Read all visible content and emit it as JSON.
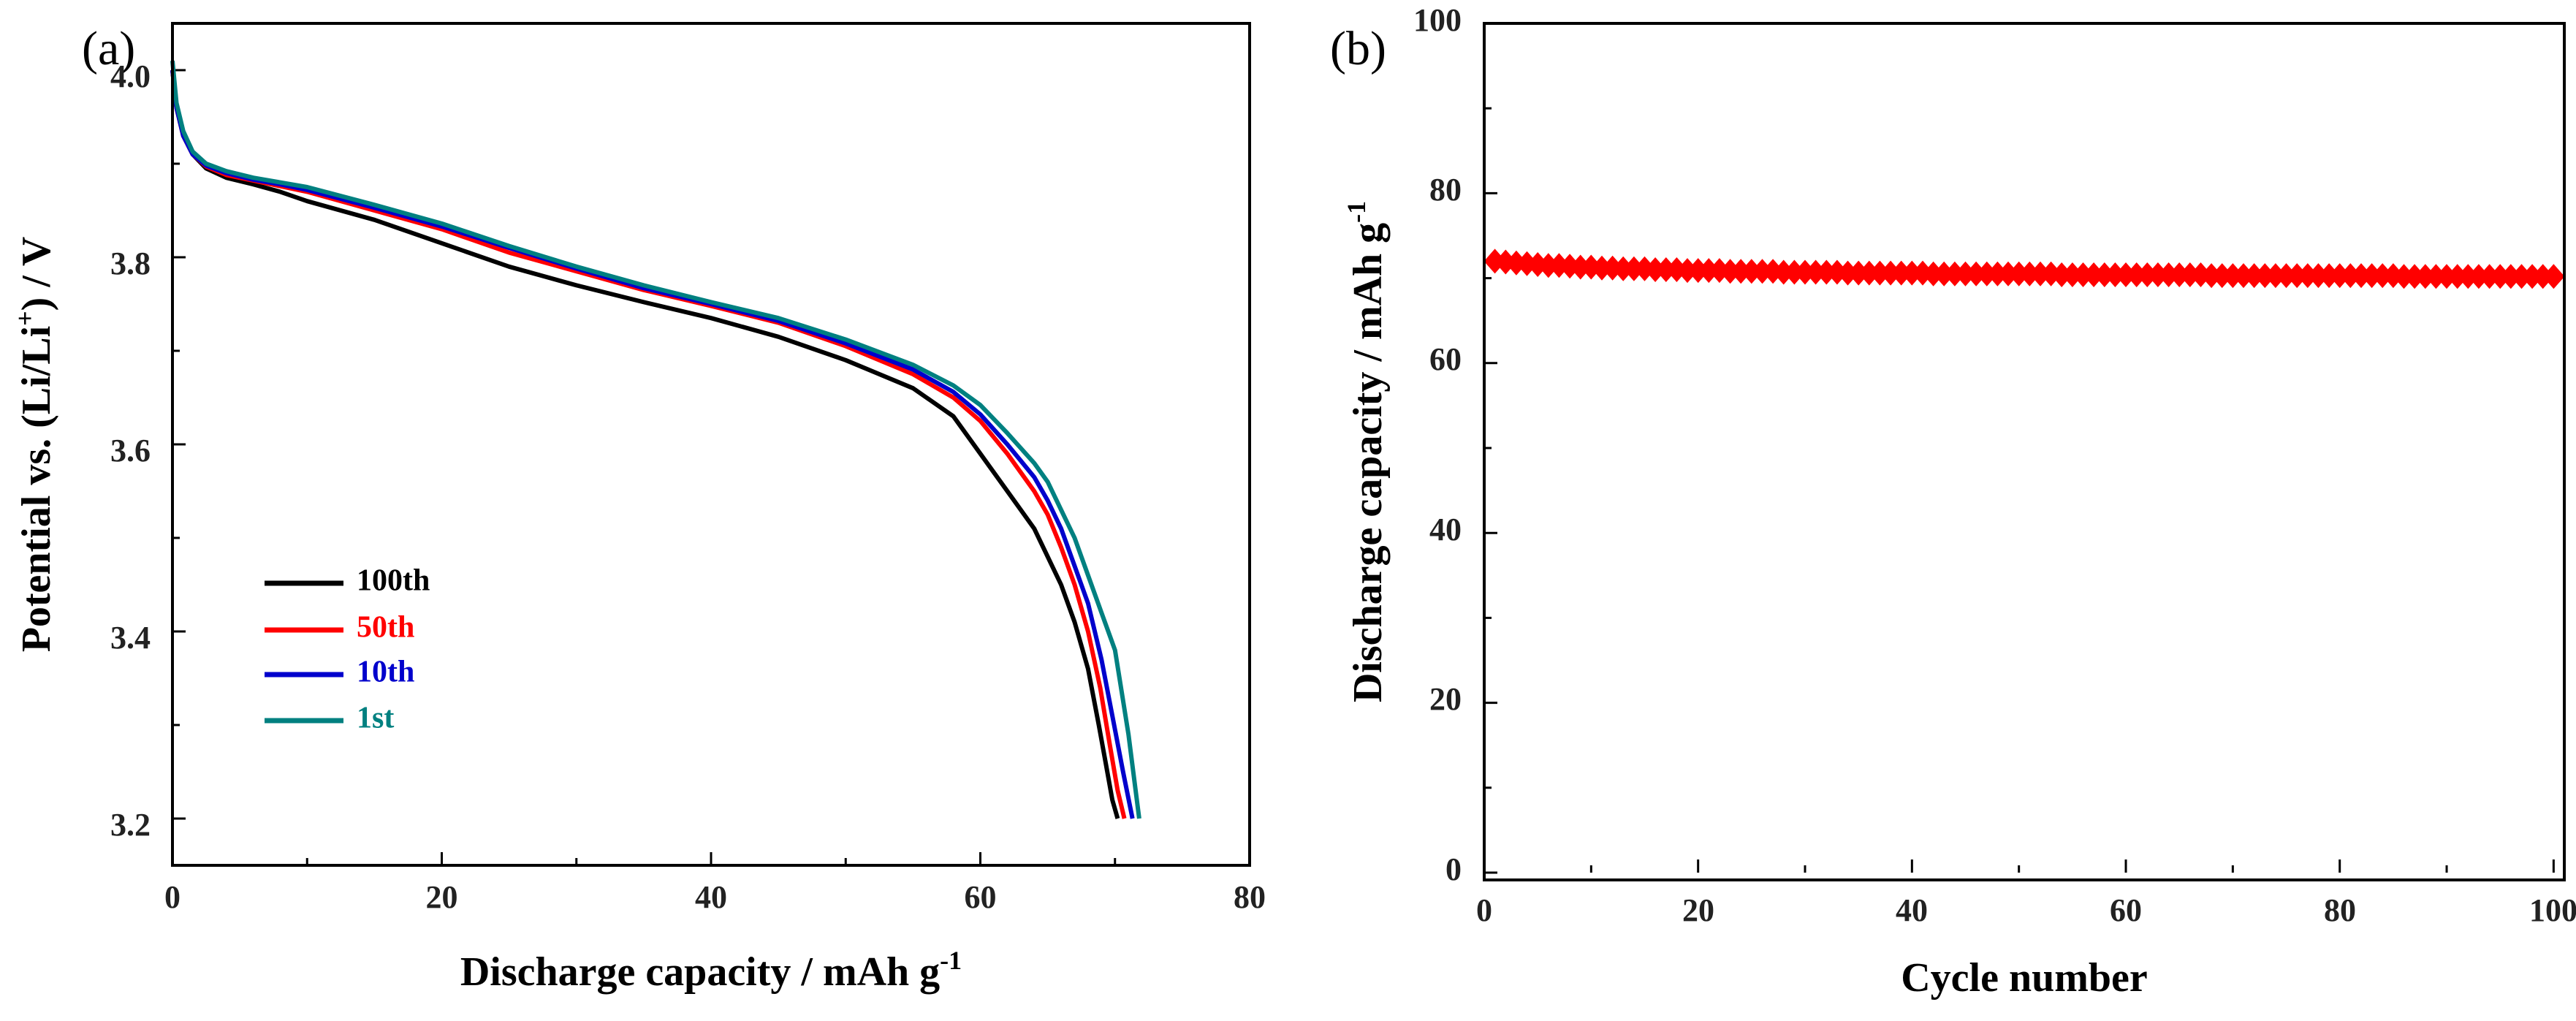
{
  "chart_data": [
    {
      "panel": "(a)",
      "type": "line",
      "xlabel": "Discharge capacity / mAh g",
      "xlabel_sup": "-1",
      "ylabel_parts": [
        "Potential vs. (Li/Li",
        "+",
        ") / V"
      ],
      "xlim": [
        0,
        80
      ],
      "ylim": [
        3.15,
        4.05
      ],
      "xticks": [
        0,
        20,
        40,
        60,
        80
      ],
      "yticks": [
        3.2,
        3.4,
        3.6,
        3.8,
        4.0
      ],
      "tick_labels_x": [
        "0",
        "20",
        "40",
        "60",
        "80"
      ],
      "tick_labels_y": [
        "3.2",
        "3.4",
        "3.6",
        "3.8",
        "4.0"
      ],
      "legend_position": "lower-left",
      "series": [
        {
          "name": "100th",
          "color": "#000000",
          "x": [
            0,
            0.3,
            0.8,
            1.5,
            2.5,
            4,
            6,
            8,
            10,
            15,
            20,
            25,
            30,
            35,
            40,
            45,
            50,
            55,
            58,
            60,
            62,
            64,
            65,
            66,
            67,
            68,
            68.8,
            69.3,
            69.8,
            70.2
          ],
          "y": [
            4.0,
            3.96,
            3.93,
            3.91,
            3.895,
            3.885,
            3.878,
            3.87,
            3.86,
            3.84,
            3.815,
            3.79,
            3.77,
            3.752,
            3.735,
            3.715,
            3.69,
            3.66,
            3.63,
            3.59,
            3.55,
            3.51,
            3.48,
            3.45,
            3.41,
            3.36,
            3.3,
            3.26,
            3.22,
            3.2
          ]
        },
        {
          "name": "50th",
          "color": "#ff0000",
          "x": [
            0,
            0.3,
            0.8,
            1.5,
            2.5,
            4,
            6,
            8,
            10,
            15,
            20,
            25,
            30,
            35,
            40,
            45,
            50,
            55,
            58,
            60,
            62,
            64,
            65,
            66,
            67,
            68,
            68.9,
            69.6,
            70.2,
            70.7
          ],
          "y": [
            4.0,
            3.96,
            3.93,
            3.91,
            3.897,
            3.888,
            3.882,
            3.876,
            3.87,
            3.85,
            3.83,
            3.805,
            3.785,
            3.765,
            3.748,
            3.73,
            3.705,
            3.675,
            3.65,
            3.625,
            3.59,
            3.55,
            3.525,
            3.49,
            3.45,
            3.4,
            3.34,
            3.28,
            3.23,
            3.2
          ]
        },
        {
          "name": "10th",
          "color": "#0000cc",
          "x": [
            0,
            0.3,
            0.8,
            1.5,
            2.5,
            4,
            6,
            8,
            10,
            15,
            20,
            25,
            30,
            35,
            40,
            45,
            50,
            55,
            58,
            60,
            62,
            64,
            65,
            66,
            67,
            68,
            69,
            69.8,
            70.6,
            71.3
          ],
          "y": [
            4.0,
            3.96,
            3.93,
            3.91,
            3.898,
            3.89,
            3.883,
            3.878,
            3.872,
            3.853,
            3.833,
            3.81,
            3.788,
            3.767,
            3.75,
            3.732,
            3.708,
            3.68,
            3.656,
            3.632,
            3.6,
            3.565,
            3.54,
            3.51,
            3.47,
            3.43,
            3.37,
            3.31,
            3.25,
            3.2
          ]
        },
        {
          "name": "1st",
          "color": "#008080",
          "x": [
            0,
            0.3,
            0.8,
            1.5,
            2.5,
            4,
            6,
            8,
            10,
            15,
            20,
            25,
            30,
            35,
            40,
            45,
            50,
            55,
            58,
            60,
            62,
            64,
            65,
            66,
            67,
            68,
            69,
            70,
            71,
            71.8
          ],
          "y": [
            4.01,
            3.965,
            3.935,
            3.913,
            3.9,
            3.892,
            3.885,
            3.88,
            3.875,
            3.856,
            3.836,
            3.812,
            3.79,
            3.77,
            3.752,
            3.735,
            3.712,
            3.685,
            3.663,
            3.642,
            3.612,
            3.58,
            3.56,
            3.53,
            3.5,
            3.46,
            3.42,
            3.38,
            3.29,
            3.2
          ]
        }
      ]
    },
    {
      "panel": "(b)",
      "type": "scatter",
      "xlabel": "Cycle number",
      "ylabel": "Discharge capacity / mAh g",
      "ylabel_sup": "-1",
      "xlim": [
        0,
        101
      ],
      "ylim": [
        0,
        100
      ],
      "xticks": [
        0,
        20,
        40,
        60,
        80,
        100
      ],
      "yticks": [
        0,
        20,
        40,
        60,
        80,
        100
      ],
      "tick_labels_x": [
        "0",
        "20",
        "40",
        "60",
        "80",
        "100"
      ],
      "tick_labels_y": [
        "0",
        "20",
        "40",
        "60",
        "80",
        "100"
      ],
      "series": [
        {
          "name": "discharge capacity",
          "color": "#ff0000",
          "marker": "diamond",
          "x": [
            1,
            2,
            3,
            4,
            5,
            6,
            7,
            8,
            9,
            10,
            11,
            12,
            13,
            14,
            15,
            16,
            17,
            18,
            19,
            20,
            21,
            22,
            23,
            24,
            25,
            26,
            27,
            28,
            29,
            30,
            31,
            32,
            33,
            34,
            35,
            36,
            37,
            38,
            39,
            40,
            41,
            42,
            43,
            44,
            45,
            46,
            47,
            48,
            49,
            50,
            51,
            52,
            53,
            54,
            55,
            56,
            57,
            58,
            59,
            60,
            61,
            62,
            63,
            64,
            65,
            66,
            67,
            68,
            69,
            70,
            71,
            72,
            73,
            74,
            75,
            76,
            77,
            78,
            79,
            80,
            81,
            82,
            83,
            84,
            85,
            86,
            87,
            88,
            89,
            90,
            91,
            92,
            93,
            94,
            95,
            96,
            97,
            98,
            99,
            100
          ],
          "y": [
            72.0,
            71.9,
            71.8,
            71.7,
            71.6,
            71.5,
            71.5,
            71.4,
            71.3,
            71.3,
            71.2,
            71.2,
            71.1,
            71.1,
            71.1,
            71.0,
            71.0,
            71.0,
            70.9,
            70.9,
            70.9,
            70.9,
            70.8,
            70.8,
            70.8,
            70.8,
            70.8,
            70.7,
            70.7,
            70.7,
            70.7,
            70.7,
            70.7,
            70.6,
            70.6,
            70.6,
            70.6,
            70.6,
            70.6,
            70.6,
            70.6,
            70.5,
            70.5,
            70.5,
            70.5,
            70.5,
            70.5,
            70.5,
            70.5,
            70.5,
            70.5,
            70.5,
            70.5,
            70.4,
            70.4,
            70.4,
            70.4,
            70.4,
            70.4,
            70.4,
            70.4,
            70.4,
            70.4,
            70.4,
            70.4,
            70.4,
            70.4,
            70.3,
            70.3,
            70.3,
            70.3,
            70.3,
            70.3,
            70.3,
            70.3,
            70.3,
            70.3,
            70.3,
            70.3,
            70.3,
            70.3,
            70.3,
            70.3,
            70.3,
            70.3,
            70.2,
            70.2,
            70.2,
            70.2,
            70.2,
            70.2,
            70.2,
            70.2,
            70.2,
            70.2,
            70.2,
            70.2,
            70.2,
            70.2,
            70.2
          ]
        }
      ]
    }
  ]
}
